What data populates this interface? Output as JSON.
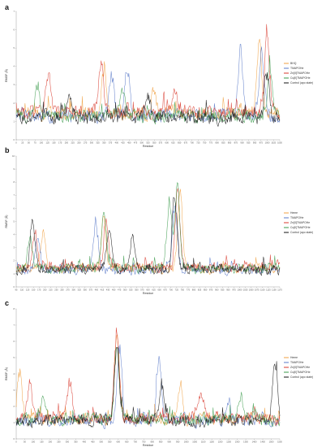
{
  "colors": {
    "orange": "#f0a040",
    "blue": "#5878c8",
    "red": "#d83a2e",
    "green": "#3a9a4a",
    "black": "#111111"
  },
  "chart_data": [
    {
      "panel": "a",
      "type": "line",
      "xlabel": "Residue",
      "ylabel": "RMSF (Å)",
      "ylim": [
        0,
        7
      ],
      "yticks": [
        "0",
        "1",
        "2",
        "3",
        "4",
        "5",
        "6",
        "7"
      ],
      "xticks": [
        "0",
        "25",
        "50",
        "75",
        "100",
        "125",
        "150",
        "175",
        "200",
        "225",
        "250",
        "275",
        "300",
        "325",
        "350",
        "375",
        "400",
        "425",
        "450",
        "475",
        "500",
        "525",
        "550",
        "575",
        "600",
        "625",
        "650",
        "675",
        "700",
        "725",
        "750",
        "775",
        "800",
        "825",
        "850",
        "875",
        "900",
        "925",
        "950",
        "975",
        "1000",
        "1025",
        "1050"
      ],
      "legend_position": "right",
      "series": [
        {
          "name": "BHQ",
          "color": "orange",
          "peaks": [
            [
              0.33,
              4.2
            ],
            [
              0.52,
              3.0
            ],
            [
              0.92,
              6.2
            ]
          ],
          "base": 1.4
        },
        {
          "name": "TMAPOHe",
          "color": "blue",
          "peaks": [
            [
              0.36,
              3.9
            ],
            [
              0.42,
              4.3
            ],
            [
              0.85,
              5.2
            ],
            [
              0.93,
              5.5
            ]
          ],
          "base": 1.3
        },
        {
          "name": "Zn[II]TMAPOHe",
          "color": "red",
          "peaks": [
            [
              0.12,
              4.0
            ],
            [
              0.32,
              4.8
            ],
            [
              0.6,
              3.2
            ],
            [
              0.95,
              6.5
            ]
          ],
          "base": 1.5
        },
        {
          "name": "Cu[II]TMAPOHe",
          "color": "green",
          "peaks": [
            [
              0.08,
              3.4
            ],
            [
              0.4,
              3.1
            ],
            [
              0.96,
              4.5
            ]
          ],
          "base": 1.3
        },
        {
          "name": "Control (apo state)",
          "color": "black",
          "peaks": [
            [
              0.2,
              2.9
            ],
            [
              0.5,
              2.6
            ],
            [
              0.95,
              4.1
            ]
          ],
          "base": 1.2
        }
      ]
    },
    {
      "panel": "b",
      "type": "line",
      "xlabel": "Residue",
      "ylabel": "RMSF (Å)",
      "ylim": [
        0,
        10
      ],
      "yticks": [
        "0",
        "1",
        "2",
        "3",
        "4",
        "5",
        "6",
        "7",
        "8",
        "9",
        "10"
      ],
      "xticks": [
        "95",
        "110",
        "125",
        "150",
        "175",
        "200",
        "215",
        "230",
        "250",
        "275",
        "300",
        "325",
        "350",
        "375",
        "400",
        "415",
        "430",
        "450",
        "475",
        "500",
        "525",
        "550",
        "575",
        "600",
        "625",
        "650",
        "675",
        "700",
        "725",
        "750",
        "775",
        "800",
        "825",
        "850",
        "875",
        "900",
        "925",
        "950",
        "975",
        "1000",
        "1025",
        "1050",
        "1075",
        "1100",
        "1125",
        "1150",
        "1175"
      ],
      "legend_position": "right",
      "series": [
        {
          "name": "Heme",
          "color": "orange",
          "peaks": [
            [
              0.1,
              5.0
            ],
            [
              0.33,
              6.3
            ],
            [
              0.62,
              8.8
            ]
          ],
          "base": 1.4
        },
        {
          "name": "TMAPOHe",
          "color": "blue",
          "peaks": [
            [
              0.08,
              4.4
            ],
            [
              0.3,
              5.5
            ],
            [
              0.6,
              7.0
            ]
          ],
          "base": 1.3
        },
        {
          "name": "Zn[II]TMAPOHe",
          "color": "red",
          "peaks": [
            [
              0.07,
              4.6
            ],
            [
              0.34,
              5.8
            ],
            [
              0.61,
              8.2
            ]
          ],
          "base": 1.5
        },
        {
          "name": "Cu[II]TMAPOHe",
          "color": "green",
          "peaks": [
            [
              0.05,
              4.2
            ],
            [
              0.33,
              6.5
            ],
            [
              0.58,
              7.5
            ],
            [
              0.61,
              9.2
            ]
          ],
          "base": 1.4
        },
        {
          "name": "Control (apo state)",
          "color": "black",
          "peaks": [
            [
              0.06,
              5.8
            ],
            [
              0.35,
              5.2
            ],
            [
              0.44,
              4.5
            ],
            [
              0.6,
              7.8
            ]
          ],
          "base": 1.3
        }
      ]
    },
    {
      "panel": "c",
      "type": "line",
      "xlabel": "Residue",
      "ylabel": "RMSF (Å)",
      "ylim": [
        0,
        8
      ],
      "yticks": [
        "0",
        "1",
        "2",
        "3",
        "4",
        "5",
        "6",
        "7",
        "8"
      ],
      "xticks": [
        "0",
        "50",
        "100",
        "150",
        "200",
        "250",
        "300",
        "350",
        "400",
        "450",
        "500",
        "550",
        "600",
        "650",
        "700",
        "750",
        "800",
        "850",
        "900",
        "950",
        "1000",
        "1050",
        "1100",
        "1150",
        "1200",
        "1250",
        "1300",
        "1350",
        "1400",
        "1450",
        "1500",
        "1550"
      ],
      "legend_position": "right",
      "series": [
        {
          "name": "Heme",
          "color": "orange",
          "peaks": [
            [
              0.01,
              4.8
            ],
            [
              0.38,
              7.6
            ],
            [
              0.62,
              3.2
            ]
          ],
          "base": 1.2
        },
        {
          "name": "TMAPOHe",
          "color": "blue",
          "peaks": [
            [
              0.39,
              6.8
            ],
            [
              0.54,
              5.5
            ],
            [
              0.8,
              2.6
            ]
          ],
          "base": 1.1
        },
        {
          "name": "Zn[II]TMAPOHe",
          "color": "red",
          "peaks": [
            [
              0.05,
              4.0
            ],
            [
              0.2,
              3.6
            ],
            [
              0.38,
              7.9
            ],
            [
              0.7,
              3.0
            ]
          ],
          "base": 1.3
        },
        {
          "name": "Cu[II]TMAPOHe",
          "color": "green",
          "peaks": [
            [
              0.1,
              3.0
            ],
            [
              0.38,
              6.2
            ],
            [
              0.85,
              2.8
            ]
          ],
          "base": 1.2
        },
        {
          "name": "Control (apo state)",
          "color": "black",
          "peaks": [
            [
              0.38,
              6.4
            ],
            [
              0.55,
              3.8
            ],
            [
              0.98,
              5.6
            ]
          ],
          "base": 1.1
        }
      ]
    }
  ]
}
